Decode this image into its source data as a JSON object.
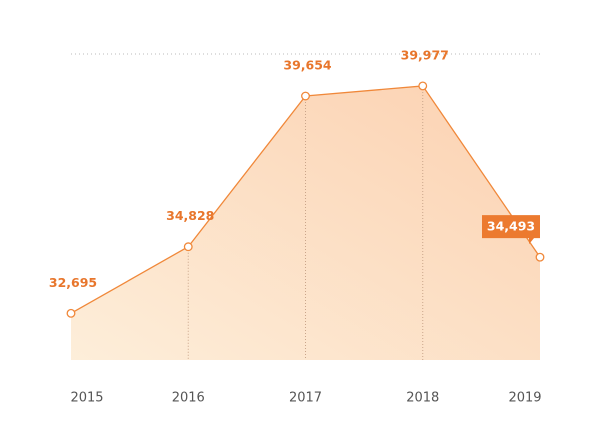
{
  "chart_data": {
    "type": "area",
    "categories": [
      "2015",
      "2016",
      "2017",
      "2018",
      "2019"
    ],
    "values": [
      32695,
      34828,
      39654,
      39977,
      34493
    ],
    "value_labels": [
      "32,695",
      "34,828",
      "39,654",
      "39,977",
      "34,493"
    ],
    "color": "#f0883a",
    "ylim": [
      31200,
      41000
    ]
  }
}
